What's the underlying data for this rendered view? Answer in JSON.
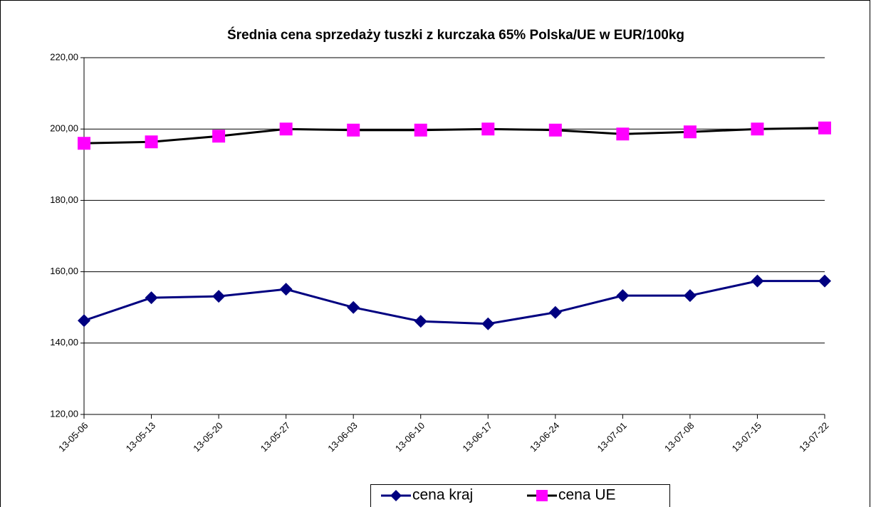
{
  "chart_data": {
    "type": "line",
    "title": "Średnia cena sprzedaży tuszki z kurczaka 65% Polska/UE w EUR/100kg",
    "categories": [
      "13-05-06",
      "13-05-13",
      "13-05-20",
      "13-05-27",
      "13-06-03",
      "13-06-10",
      "13-06-17",
      "13-06-24",
      "13-07-01",
      "13-07-08",
      "13-07-15",
      "13-07-22"
    ],
    "series": [
      {
        "name": "cena kraj",
        "color": "#000080",
        "marker": "diamond",
        "values": [
          146.3,
          152.7,
          153.1,
          155.1,
          150.0,
          146.1,
          145.4,
          148.6,
          153.3,
          153.3,
          157.4,
          157.4
        ]
      },
      {
        "name": "cena UE",
        "color": "#000000",
        "marker_color": "#ff00ff",
        "marker": "square",
        "values": [
          196.0,
          196.4,
          198.0,
          200.0,
          199.7,
          199.7,
          200.0,
          199.7,
          198.6,
          199.2,
          200.0,
          200.3
        ]
      }
    ],
    "ylim": [
      120,
      220
    ],
    "yticks": [
      {
        "value": 120,
        "label": "120,00"
      },
      {
        "value": 140,
        "label": "140,00"
      },
      {
        "value": 160,
        "label": "160,00"
      },
      {
        "value": 180,
        "label": "180,00"
      },
      {
        "value": 200,
        "label": "200,00"
      },
      {
        "value": 220,
        "label": "220,00"
      }
    ],
    "grid": true,
    "legend": "bottom"
  }
}
